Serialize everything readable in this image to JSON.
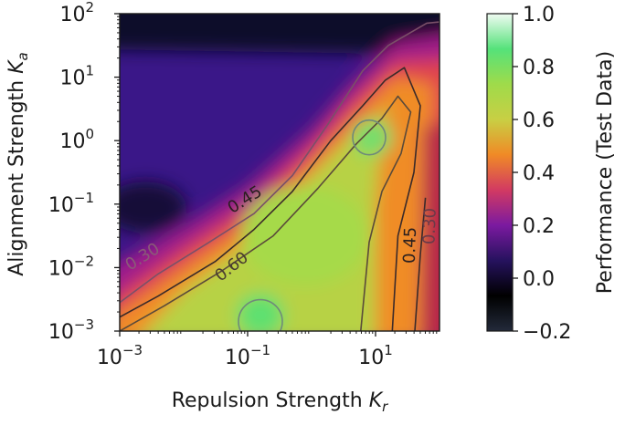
{
  "chart_data": {
    "type": "heatmap",
    "title": "",
    "xlabel": "Repulsion Strength",
    "xlabel_symbol": "K",
    "xlabel_sub": "r",
    "ylabel": "Alignment Strength",
    "ylabel_symbol": "K",
    "ylabel_sub": "a",
    "xscale": "log",
    "yscale": "log",
    "xlim": [
      0.001,
      100
    ],
    "ylim": [
      0.001,
      100
    ],
    "x_ticks": [
      {
        "value": 0.001,
        "base": "10",
        "exp": "−3"
      },
      {
        "value": 0.1,
        "base": "10",
        "exp": "−1"
      },
      {
        "value": 10,
        "base": "10",
        "exp": "1"
      }
    ],
    "y_ticks": [
      {
        "value": 0.001,
        "base": "10",
        "exp": "−3"
      },
      {
        "value": 0.01,
        "base": "10",
        "exp": "−2"
      },
      {
        "value": 0.1,
        "base": "10",
        "exp": "−1"
      },
      {
        "value": 1,
        "base": "10",
        "exp": "0"
      },
      {
        "value": 10,
        "base": "10",
        "exp": "1"
      },
      {
        "value": 100,
        "base": "10",
        "exp": "2"
      }
    ],
    "colorbar": {
      "label": "Performance (Test Data)",
      "min": -0.2,
      "max": 1.0,
      "ticks": [
        "−0.2",
        "0.0",
        "0.2",
        "0.4",
        "0.6",
        "0.8",
        "1.0"
      ],
      "tick_values": [
        -0.2,
        0.0,
        0.2,
        0.4,
        0.6,
        0.8,
        1.0
      ]
    },
    "contour_levels": [
      {
        "level": 0.3,
        "label": "0.30",
        "color": "#7a5068"
      },
      {
        "level": 0.45,
        "label": "0.45",
        "color": "#3a2a2a"
      },
      {
        "level": 0.6,
        "label": "0.60",
        "color": "#5a4a3a"
      },
      {
        "level": 0.75,
        "label": "",
        "color": "#6f8a7a"
      }
    ],
    "colors": {
      "stops": [
        "#232a3a",
        "#000000",
        "#26125e",
        "#7b1aa0",
        "#d23a62",
        "#f08a26",
        "#c8cf44",
        "#9fdb4a",
        "#55e27a",
        "#f0fbf2"
      ]
    }
  }
}
